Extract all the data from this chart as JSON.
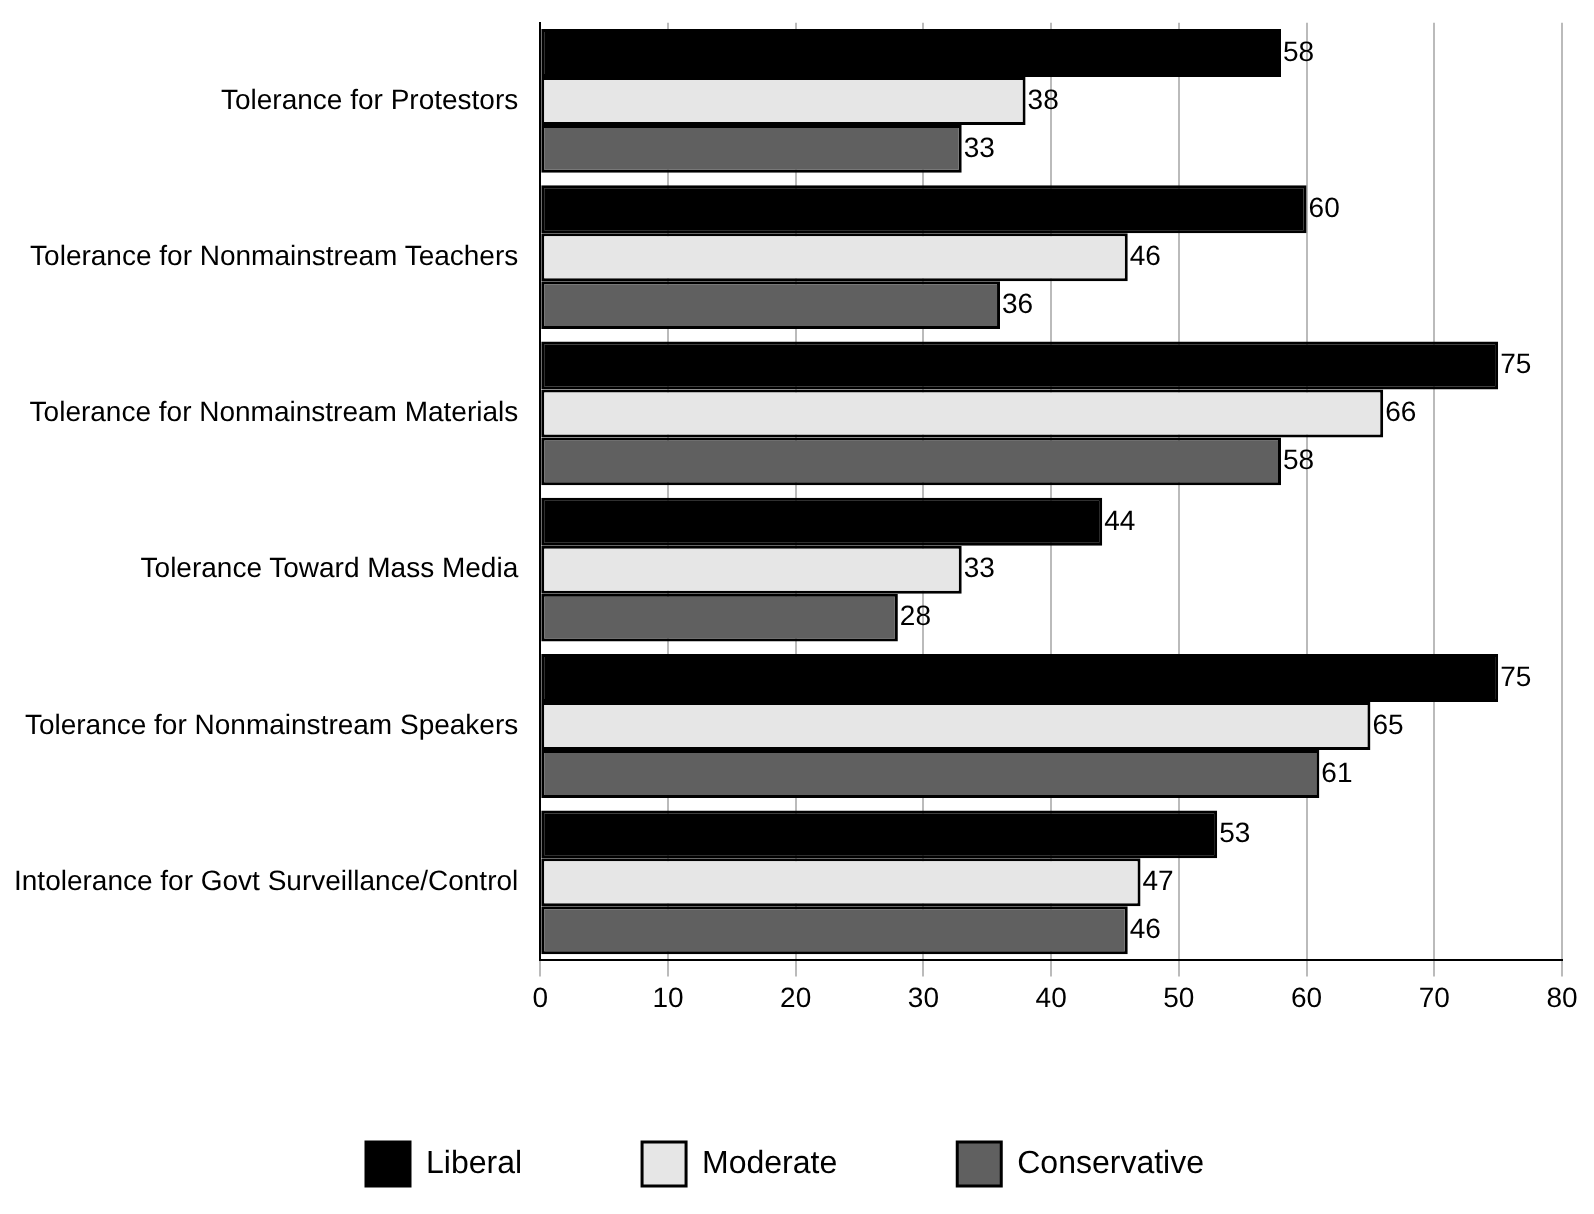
{
  "chart_data": {
    "type": "bar",
    "orientation": "horizontal",
    "categories": [
      "Tolerance for Protestors",
      "Tolerance for Nonmainstream Teachers",
      "Tolerance for Nonmainstream Materials",
      "Tolerance Toward Mass Media",
      "Tolerance for Nonmainstream Speakers",
      "Intolerance for Govt Surveillance/Control"
    ],
    "series": [
      {
        "name": "Liberal",
        "color": "#000000",
        "values": [
          58,
          60,
          75,
          44,
          75,
          53
        ]
      },
      {
        "name": "Moderate",
        "color": "#e6e6e6",
        "values": [
          38,
          46,
          66,
          33,
          65,
          47
        ]
      },
      {
        "name": "Conservative",
        "color": "#606060",
        "values": [
          33,
          36,
          58,
          28,
          61,
          46
        ]
      }
    ],
    "xlim": [
      0,
      80
    ],
    "xticks": [
      0,
      10,
      20,
      30,
      40,
      50,
      60,
      70,
      80
    ],
    "grid": "x",
    "legend": "bottom",
    "data_labels": true
  }
}
